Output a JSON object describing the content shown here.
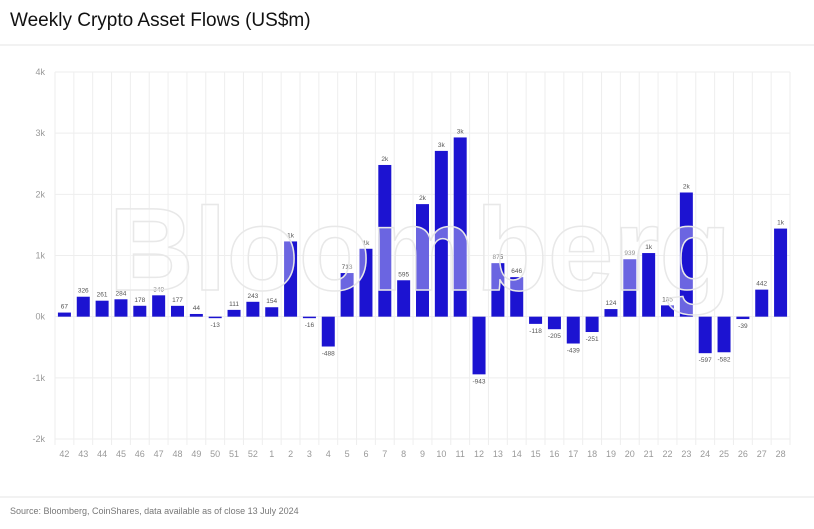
{
  "chart_data": {
    "type": "bar",
    "title": "Weekly Crypto Asset Flows (US$m)",
    "source": "Source: Bloomberg, CoinShares, data available as of close 13 July 2024",
    "watermark": "Bloomberg",
    "color": "#1c13d1",
    "ylim": [
      -2000,
      4000
    ],
    "yticks": [
      -2000,
      -1000,
      0,
      1000,
      2000,
      3000,
      4000
    ],
    "ytick_labels": [
      "-2k",
      "-1k",
      "0k",
      "1k",
      "2k",
      "3k",
      "4k"
    ],
    "grid": true,
    "categories": [
      "42",
      "43",
      "44",
      "45",
      "46",
      "47",
      "48",
      "49",
      "50",
      "51",
      "52",
      "1",
      "2",
      "3",
      "4",
      "5",
      "6",
      "7",
      "8",
      "9",
      "10",
      "11",
      "12",
      "13",
      "14",
      "15",
      "16",
      "17",
      "18",
      "19",
      "20",
      "21",
      "22",
      "23",
      "24",
      "25",
      "26",
      "27",
      "28"
    ],
    "values": [
      67,
      326,
      261,
      284,
      178,
      349,
      177,
      44,
      -13,
      111,
      243,
      154,
      1230,
      -16,
      -488,
      713,
      1110,
      2480,
      595,
      1840,
      2710,
      2930,
      -943,
      875,
      646,
      -118,
      -205,
      -439,
      -251,
      124,
      939,
      1040,
      185,
      2030,
      -597,
      -582,
      -39,
      442,
      1440
    ],
    "data_labels": [
      "67",
      "326",
      "261",
      "284",
      "178",
      "349",
      "177",
      "44",
      "-13",
      "111",
      "243",
      "154",
      "1k",
      "-16",
      "-488",
      "713",
      "1k",
      "2k",
      "595",
      "2k",
      "3k",
      "3k",
      "-943",
      "875",
      "646",
      "-118",
      "-205",
      "-439",
      "-251",
      "124",
      "939",
      "1k",
      "185",
      "2k",
      "-597",
      "-582",
      "-39",
      "442",
      "1k"
    ]
  }
}
